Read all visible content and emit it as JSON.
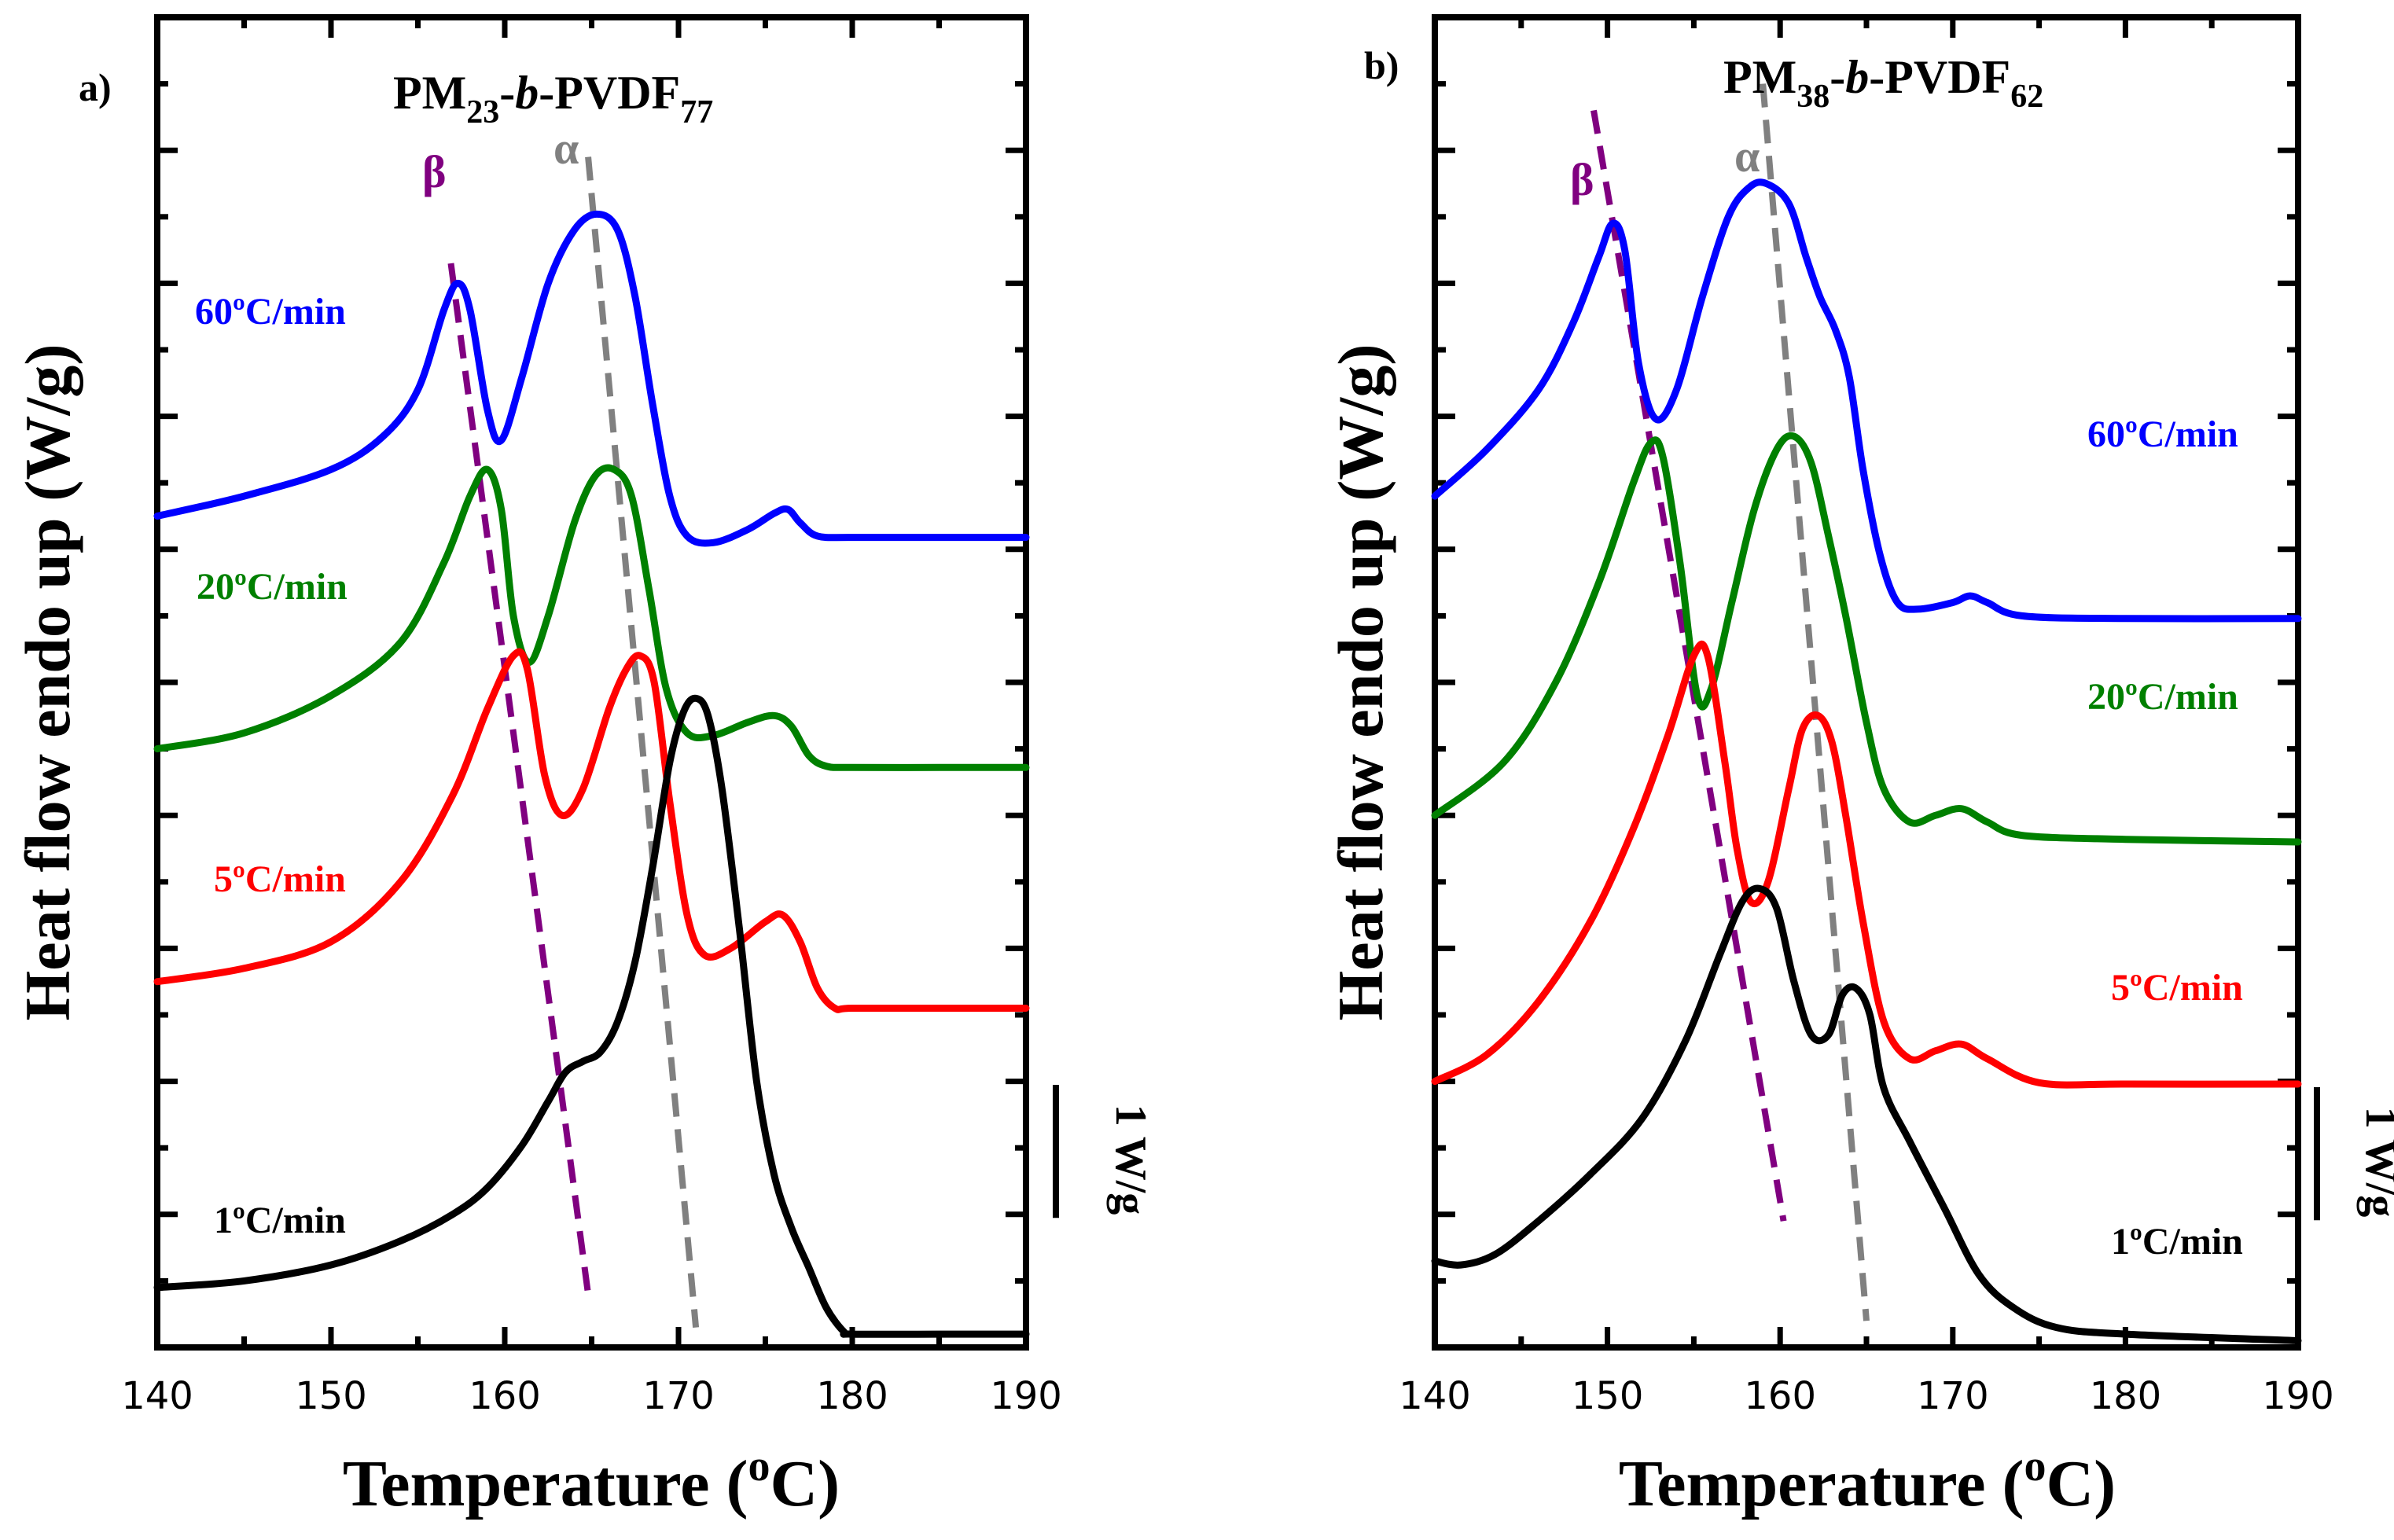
{
  "chart_data": [
    {
      "type": "line",
      "panel_label": "a)",
      "title_parts": {
        "main": "PM",
        "sub1": "23",
        "mid": "-",
        "italic": "b",
        "tail": "-PVDF",
        "sub2": "77"
      },
      "xlabel": "Temperature (oC)",
      "xlabel_parts": {
        "pre": "Temperature (",
        "sup": "o",
        "post": "C)"
      },
      "ylabel": "Heat flow endo up (W/g)",
      "xlim": [
        140,
        190
      ],
      "ylim": [
        0,
        10
      ],
      "xticks": [
        140,
        150,
        160,
        170,
        180,
        190
      ],
      "scale_bar_label": "1 W/g",
      "scale_bar_value": 1,
      "series": [
        {
          "name": "60ºC/min",
          "color": "#0000ff",
          "x": [
            140,
            145,
            150,
            153,
            155,
            156.5,
            157.3,
            158,
            159,
            159.8,
            161,
            162.5,
            164,
            165.3,
            166.5,
            167.5,
            168.5,
            169.5,
            170.5,
            172,
            174,
            175.5,
            176.3,
            177,
            178,
            180,
            185,
            190
          ],
          "y": [
            6.25,
            6.4,
            6.6,
            6.85,
            7.2,
            7.8,
            8.0,
            7.8,
            7.05,
            6.82,
            7.3,
            8.0,
            8.4,
            8.52,
            8.4,
            7.9,
            7.1,
            6.4,
            6.1,
            6.05,
            6.15,
            6.27,
            6.3,
            6.2,
            6.1,
            6.09,
            6.09,
            6.09
          ]
        },
        {
          "name": "20ºC/min",
          "color": "#008000",
          "x": [
            140,
            145,
            150,
            154,
            156.5,
            158,
            159,
            159.8,
            160.5,
            161.4,
            162.5,
            164,
            165.2,
            166.3,
            167.3,
            168.3,
            169.3,
            170.5,
            172,
            174,
            175.5,
            176.5,
            177.5,
            178.5,
            180,
            185,
            190
          ],
          "y": [
            4.5,
            4.62,
            4.9,
            5.3,
            5.9,
            6.4,
            6.6,
            6.3,
            5.5,
            5.15,
            5.5,
            6.2,
            6.55,
            6.6,
            6.4,
            5.7,
            4.95,
            4.62,
            4.6,
            4.7,
            4.75,
            4.67,
            4.45,
            4.37,
            4.36,
            4.36,
            4.36
          ]
        },
        {
          "name": "5ºC/min",
          "color": "#ff0000",
          "x": [
            140,
            145,
            150,
            154,
            157,
            159,
            160.5,
            161.3,
            162.3,
            163.3,
            164.5,
            166,
            167,
            167.8,
            168.6,
            169.5,
            170.5,
            171.5,
            173,
            175,
            176,
            177,
            178,
            179,
            180,
            185,
            190
          ],
          "y": [
            2.75,
            2.85,
            3.05,
            3.5,
            4.15,
            4.8,
            5.2,
            5.1,
            4.3,
            4.0,
            4.2,
            4.8,
            5.1,
            5.2,
            5.0,
            4.1,
            3.25,
            2.95,
            3.0,
            3.2,
            3.25,
            3.05,
            2.7,
            2.55,
            2.55,
            2.55,
            2.55
          ]
        },
        {
          "name": "1ºC/min",
          "color": "#000000",
          "x": [
            140,
            145,
            150,
            154,
            157,
            159,
            161,
            162.5,
            163.5,
            164.5,
            165.5,
            166.5,
            167.5,
            168.5,
            169.5,
            170.3,
            171,
            171.7,
            172.5,
            173.5,
            174.5,
            175.5,
            176.5,
            177.5,
            178.5,
            179.5,
            180,
            185,
            190
          ],
          "y": [
            0.45,
            0.5,
            0.62,
            0.8,
            1.0,
            1.2,
            1.52,
            1.85,
            2.07,
            2.15,
            2.22,
            2.45,
            2.9,
            3.6,
            4.4,
            4.78,
            4.88,
            4.75,
            4.2,
            3.15,
            2.0,
            1.3,
            0.9,
            0.6,
            0.3,
            0.12,
            0.1,
            0.1,
            0.1
          ]
        }
      ],
      "guides": [
        {
          "symbol": "β",
          "color": "#800080",
          "x1": 156.9,
          "y1": 8.15,
          "x2": 164.8,
          "y2": 0.4
        },
        {
          "symbol": "α",
          "color": "#808080",
          "x1": 164.8,
          "y1": 8.95,
          "x2": 171.0,
          "y2": 0.15
        }
      ]
    },
    {
      "type": "line",
      "panel_label": "b)",
      "title_parts": {
        "main": "PM",
        "sub1": "38",
        "mid": "-",
        "italic": "b",
        "tail": "-PVDF",
        "sub2": "62"
      },
      "xlabel": "Temperature (oC)",
      "xlabel_parts": {
        "pre": "Temperature (",
        "sup": "o",
        "post": "C)"
      },
      "ylabel": "Heat flow endo up (W/g)",
      "xlim": [
        140,
        190
      ],
      "ylim": [
        0,
        10
      ],
      "xticks": [
        140,
        150,
        160,
        170,
        180,
        190
      ],
      "scale_bar_label": "1 W/g",
      "scale_bar_value": 1,
      "series": [
        {
          "name": "60ºC/min",
          "color": "#0000ff",
          "x": [
            140,
            143,
            146,
            148,
            149.5,
            150.3,
            151,
            151.8,
            152.8,
            154,
            155.5,
            157,
            158.2,
            159.2,
            160.5,
            161.5,
            162.3,
            163.2,
            164,
            164.8,
            165.8,
            166.8,
            168,
            170,
            171,
            172,
            174,
            180,
            190
          ],
          "y": [
            6.4,
            6.75,
            7.2,
            7.7,
            8.2,
            8.45,
            8.25,
            7.4,
            6.98,
            7.2,
            7.9,
            8.5,
            8.72,
            8.75,
            8.6,
            8.2,
            7.9,
            7.65,
            7.3,
            6.6,
            5.95,
            5.6,
            5.55,
            5.6,
            5.65,
            5.6,
            5.5,
            5.48,
            5.48
          ]
        },
        {
          "name": "20ºC/min",
          "color": "#008000",
          "x": [
            140,
            144,
            147,
            149.5,
            151.5,
            152.5,
            153.2,
            154.2,
            155.2,
            156,
            157.2,
            158.5,
            159.8,
            160.8,
            161.8,
            162.8,
            163.8,
            165,
            166,
            167.5,
            169,
            170.5,
            172,
            174,
            180,
            190
          ],
          "y": [
            4.0,
            4.4,
            5.0,
            5.75,
            6.5,
            6.8,
            6.7,
            5.9,
            4.9,
            4.95,
            5.6,
            6.3,
            6.75,
            6.85,
            6.65,
            6.1,
            5.5,
            4.7,
            4.2,
            3.95,
            4.0,
            4.05,
            3.95,
            3.85,
            3.82,
            3.8
          ]
        },
        {
          "name": "5ºC/min",
          "color": "#ff0000",
          "x": [
            140,
            143,
            146,
            149,
            151.5,
            153.5,
            155,
            155.8,
            156.8,
            157.5,
            158.3,
            159.3,
            160.5,
            161.3,
            162.2,
            163,
            163.8,
            164.8,
            166,
            167.5,
            169,
            170.5,
            172,
            175,
            180,
            190
          ],
          "y": [
            2.0,
            2.2,
            2.6,
            3.2,
            3.9,
            4.6,
            5.2,
            5.2,
            4.4,
            3.75,
            3.35,
            3.5,
            4.2,
            4.65,
            4.75,
            4.55,
            4.0,
            3.2,
            2.45,
            2.17,
            2.23,
            2.28,
            2.17,
            1.99,
            1.98,
            1.98
          ]
        },
        {
          "name": "1ºC/min",
          "color": "#000000",
          "x": [
            140,
            141.5,
            143.5,
            146,
            149,
            152,
            154.5,
            156.5,
            157.8,
            158.8,
            159.8,
            160.8,
            161.8,
            162.8,
            163.6,
            164.4,
            165.2,
            166,
            167.5,
            169.5,
            171.5,
            173.5,
            176,
            180,
            190
          ],
          "y": [
            0.65,
            0.62,
            0.7,
            0.95,
            1.3,
            1.72,
            2.3,
            2.95,
            3.35,
            3.45,
            3.3,
            2.75,
            2.35,
            2.35,
            2.65,
            2.7,
            2.5,
            1.95,
            1.55,
            1.05,
            0.55,
            0.3,
            0.15,
            0.1,
            0.05
          ]
        }
      ],
      "guides": [
        {
          "symbol": "β",
          "color": "#800080",
          "x1": 149.2,
          "y1": 9.3,
          "x2": 160.2,
          "y2": 0.95
        },
        {
          "symbol": "α",
          "color": "#808080",
          "x1": 159.0,
          "y1": 9.5,
          "x2": 165.0,
          "y2": 0.2
        }
      ]
    }
  ]
}
